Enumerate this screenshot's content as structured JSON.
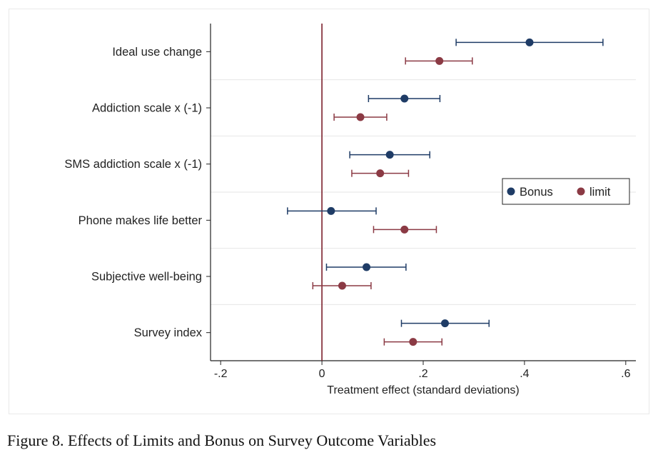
{
  "caption": "Figure 8. Effects of Limits and Bonus on Survey Outcome Variables",
  "chart_data": {
    "type": "scatter",
    "subtype": "coefficient-plot-with-error-bars",
    "title": "",
    "xlabel": "Treatment effect (standard deviations)",
    "ylabel": "",
    "xlim": [
      -0.22,
      0.62
    ],
    "xticks": [
      -0.2,
      0,
      0.2,
      0.4,
      0.6
    ],
    "xtick_labels": [
      "-.2",
      "0",
      ".2",
      ".4",
      ".6"
    ],
    "reference_line_x": 0,
    "horizontal_gridlines": true,
    "legend_position": "right-middle",
    "categories": [
      "Ideal use change",
      "Addiction scale x (-1)",
      "SMS addiction scale x (-1)",
      "Phone makes life better",
      "Subjective well-being",
      "Survey index"
    ],
    "series": [
      {
        "name": "Bonus",
        "color": "#1f3c66",
        "points": [
          {
            "estimate": 0.41,
            "ci_low": 0.265,
            "ci_high": 0.555
          },
          {
            "estimate": 0.163,
            "ci_low": 0.092,
            "ci_high": 0.233
          },
          {
            "estimate": 0.134,
            "ci_low": 0.055,
            "ci_high": 0.213
          },
          {
            "estimate": 0.018,
            "ci_low": -0.068,
            "ci_high": 0.107
          },
          {
            "estimate": 0.088,
            "ci_low": 0.009,
            "ci_high": 0.166
          },
          {
            "estimate": 0.243,
            "ci_low": 0.157,
            "ci_high": 0.33
          }
        ]
      },
      {
        "name": "limit",
        "color": "#8b3a44",
        "points": [
          {
            "estimate": 0.232,
            "ci_low": 0.165,
            "ci_high": 0.297
          },
          {
            "estimate": 0.076,
            "ci_low": 0.024,
            "ci_high": 0.128
          },
          {
            "estimate": 0.115,
            "ci_low": 0.059,
            "ci_high": 0.171
          },
          {
            "estimate": 0.163,
            "ci_low": 0.102,
            "ci_high": 0.226
          },
          {
            "estimate": 0.04,
            "ci_low": -0.018,
            "ci_high": 0.097
          },
          {
            "estimate": 0.18,
            "ci_low": 0.123,
            "ci_high": 0.237
          }
        ]
      }
    ],
    "colors": {
      "axis": "#222222",
      "reference_line": "#7a1f2b",
      "gridline": "#e6e6e6",
      "background": "#ffffff"
    }
  }
}
